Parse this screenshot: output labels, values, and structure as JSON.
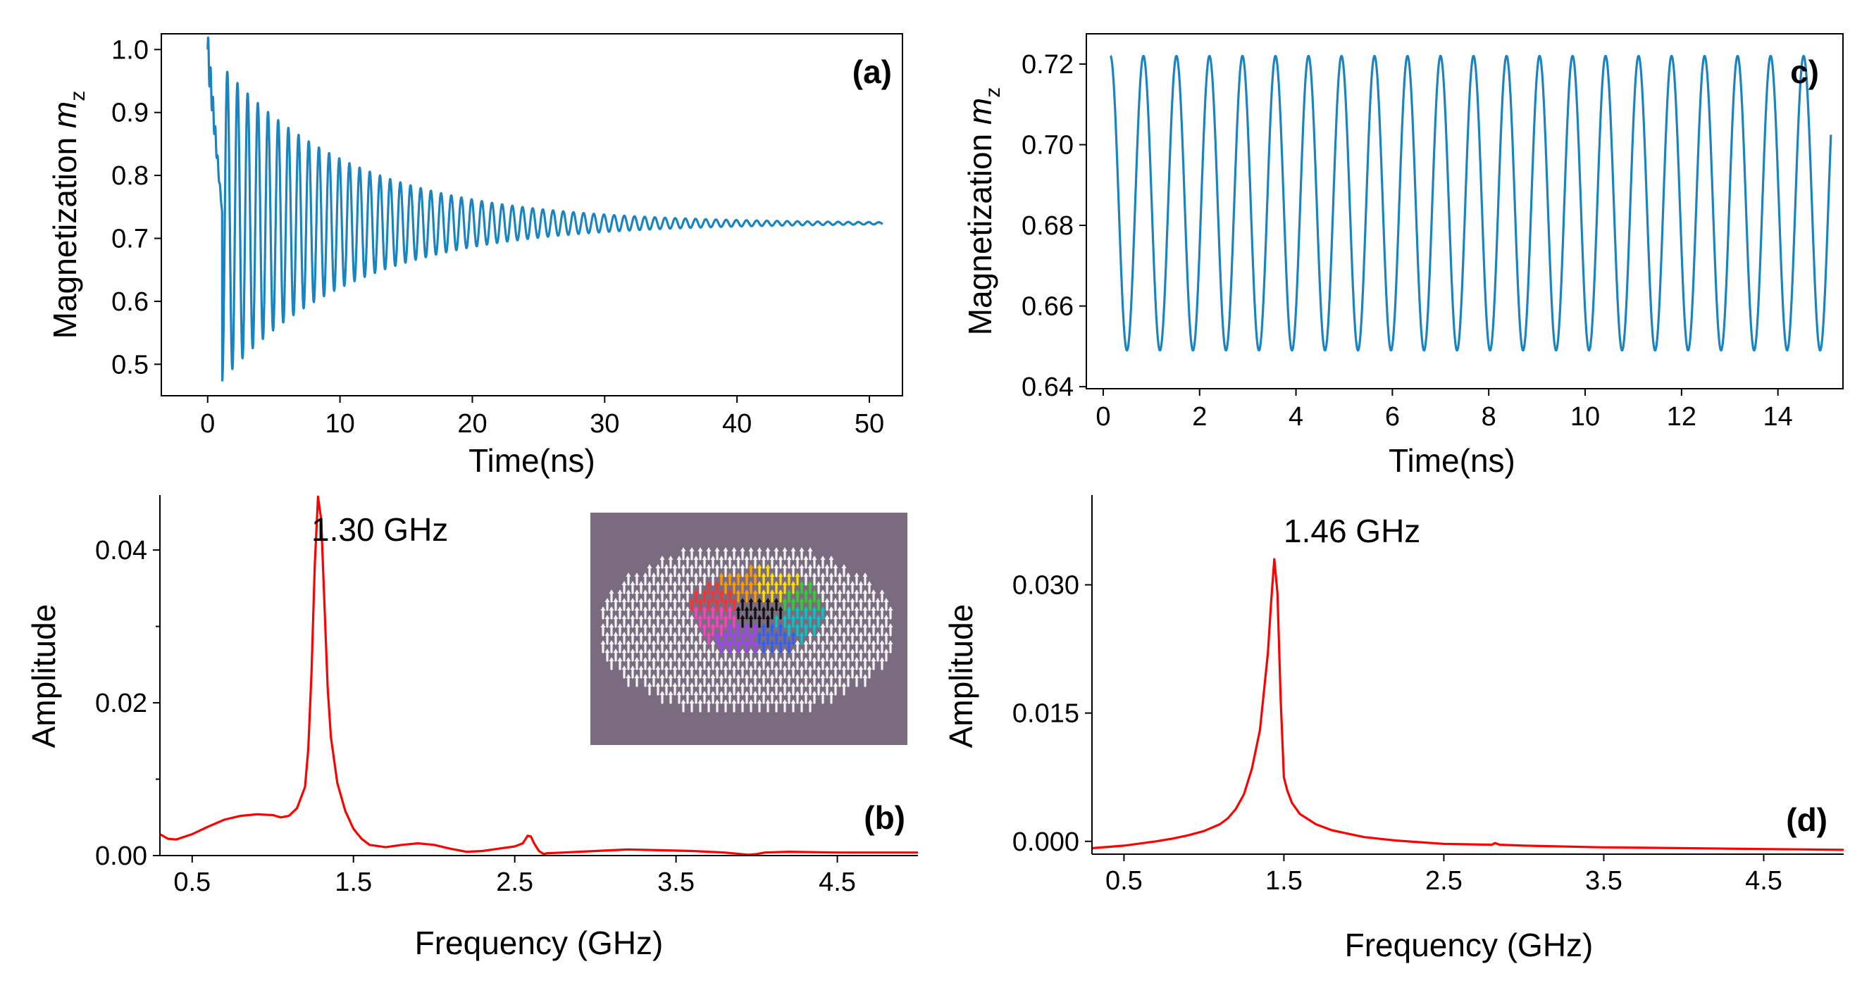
{
  "colors": {
    "series_blue": "#1a84c0",
    "spectrum_red": "#ff0000",
    "inset_background": "#7a6b80"
  },
  "chart_data": [
    {
      "panel": "a",
      "type": "line",
      "panel_label": "(a)",
      "title": "",
      "xlabel": "Time(ns)",
      "ylabel": "Magnetization",
      "ylabel_symbol": "m",
      "ylabel_subscript": "z",
      "xlim": [
        -3.5,
        52.5
      ],
      "ylim": [
        0.45,
        1.025
      ],
      "xticks": [
        0,
        10,
        20,
        30,
        40,
        50
      ],
      "xtick_labels": [
        "0",
        "10",
        "20",
        "30",
        "40",
        "50"
      ],
      "yticks": [
        0.5,
        0.6,
        0.7,
        0.8,
        0.9,
        1.0
      ],
      "ytick_labels": [
        "0.5",
        "0.6",
        "0.7",
        "0.8",
        "0.9",
        "1.0"
      ],
      "series": [
        {
          "name": "m_z(t)",
          "kind": "damped_oscillation",
          "t_start": 0,
          "t_end": 51,
          "initial_value": 1.0,
          "equilibrium": 0.724,
          "initial_amplitude": 0.25,
          "decay_time_ns": 10,
          "frequency_ghz": 1.3
        }
      ]
    },
    {
      "panel": "b",
      "type": "line",
      "panel_label": "(b)",
      "title": "",
      "xlabel": "Frequency (GHz)",
      "ylabel": "Amplitude",
      "xlim": [
        0.3,
        5.0
      ],
      "ylim": [
        0,
        0.0472
      ],
      "xticks": [
        0.5,
        1.5,
        2.5,
        3.5,
        4.5
      ],
      "xtick_labels": [
        "0.5",
        "1.5",
        "2.5",
        "3.5",
        "4.5"
      ],
      "yticks": [
        0.0,
        0.02,
        0.04
      ],
      "ytick_labels": [
        "0.00",
        "0.02",
        "0.04"
      ],
      "annotation": "1.30 GHz",
      "inset": "skyrmion spin texture",
      "series": [
        {
          "name": "FFT amplitude",
          "x": [
            0.3,
            0.35,
            0.4,
            0.5,
            0.6,
            0.7,
            0.8,
            0.9,
            1.0,
            1.05,
            1.1,
            1.15,
            1.2,
            1.22,
            1.24,
            1.26,
            1.28,
            1.3,
            1.32,
            1.34,
            1.36,
            1.4,
            1.45,
            1.5,
            1.55,
            1.6,
            1.7,
            1.8,
            1.9,
            2.0,
            2.1,
            2.2,
            2.3,
            2.4,
            2.5,
            2.55,
            2.58,
            2.6,
            2.62,
            2.65,
            2.68,
            2.7,
            2.8,
            3.0,
            3.2,
            3.4,
            3.6,
            3.8,
            3.9,
            3.95,
            4.0,
            4.05,
            4.2,
            4.5,
            4.8,
            5.0
          ],
          "y": [
            0.0028,
            0.0022,
            0.0021,
            0.0028,
            0.0038,
            0.0047,
            0.0052,
            0.0054,
            0.0053,
            0.005,
            0.0052,
            0.0062,
            0.009,
            0.014,
            0.024,
            0.038,
            0.047,
            0.044,
            0.033,
            0.022,
            0.0155,
            0.0095,
            0.0058,
            0.0035,
            0.0022,
            0.0014,
            0.0011,
            0.0014,
            0.0016,
            0.0014,
            0.0009,
            0.0005,
            0.0006,
            0.0009,
            0.0012,
            0.0016,
            0.0026,
            0.0025,
            0.0016,
            0.0006,
            0.0002,
            0.0003,
            0.0004,
            0.0006,
            0.0008,
            0.0007,
            0.0006,
            0.0004,
            0.0002,
            0.0001,
            0.0002,
            0.0004,
            0.0005,
            0.0004,
            0.0004,
            0.0004
          ]
        }
      ]
    },
    {
      "panel": "c",
      "type": "line",
      "panel_label": "c)",
      "title": "",
      "xlabel": "Time(ns)",
      "ylabel": "Magnetization",
      "ylabel_symbol": "m",
      "ylabel_subscript": "z",
      "xlim": [
        -0.35,
        15.35
      ],
      "ylim": [
        0.6395,
        0.7275
      ],
      "xticks": [
        0,
        2,
        4,
        6,
        8,
        10,
        12,
        14
      ],
      "xtick_labels": [
        "0",
        "2",
        "4",
        "6",
        "8",
        "10",
        "12",
        "14"
      ],
      "yticks": [
        0.64,
        0.66,
        0.68,
        0.7,
        0.72
      ],
      "ytick_labels": [
        "0.64",
        "0.66",
        "0.68",
        "0.70",
        "0.72"
      ],
      "series": [
        {
          "name": "m_z(t)",
          "kind": "oscillation",
          "t_start": 0.15,
          "t_end": 15.1,
          "center": 0.6855,
          "amplitude": 0.0365,
          "frequency_ghz": 1.46,
          "start_value": 0.722
        }
      ]
    },
    {
      "panel": "d",
      "type": "line",
      "panel_label": "(d)",
      "title": "",
      "xlabel": "Frequency (GHz)",
      "ylabel": "Amplitude",
      "xlim": [
        0.3,
        5.0
      ],
      "ylim": [
        -0.0015,
        0.0405
      ],
      "xticks": [
        0.5,
        1.5,
        2.5,
        3.5,
        4.5
      ],
      "xtick_labels": [
        "0.5",
        "1.5",
        "2.5",
        "3.5",
        "4.5"
      ],
      "yticks": [
        0.0,
        0.015,
        0.03
      ],
      "ytick_labels": [
        "0.000",
        "0.015",
        "0.030"
      ],
      "annotation": "1.46 GHz",
      "series": [
        {
          "name": "FFT amplitude",
          "x": [
            0.3,
            0.5,
            0.7,
            0.8,
            0.9,
            1.0,
            1.1,
            1.15,
            1.2,
            1.25,
            1.3,
            1.35,
            1.4,
            1.42,
            1.44,
            1.46,
            1.48,
            1.5,
            1.52,
            1.55,
            1.6,
            1.7,
            1.8,
            2.0,
            2.2,
            2.5,
            2.8,
            2.82,
            2.85,
            3.0,
            3.5,
            4.0,
            4.5,
            5.0
          ],
          "y": [
            -0.0008,
            -0.0005,
            0.0,
            0.0003,
            0.0007,
            0.0012,
            0.002,
            0.0027,
            0.0038,
            0.0055,
            0.0085,
            0.013,
            0.022,
            0.028,
            0.033,
            0.029,
            0.0165,
            0.0075,
            0.006,
            0.0045,
            0.0032,
            0.002,
            0.0013,
            0.0005,
            0.0001,
            -0.0003,
            -0.0004,
            -0.0002,
            -0.0004,
            -0.0005,
            -0.0007,
            -0.0008,
            -0.0009,
            -0.001
          ]
        }
      ]
    }
  ]
}
